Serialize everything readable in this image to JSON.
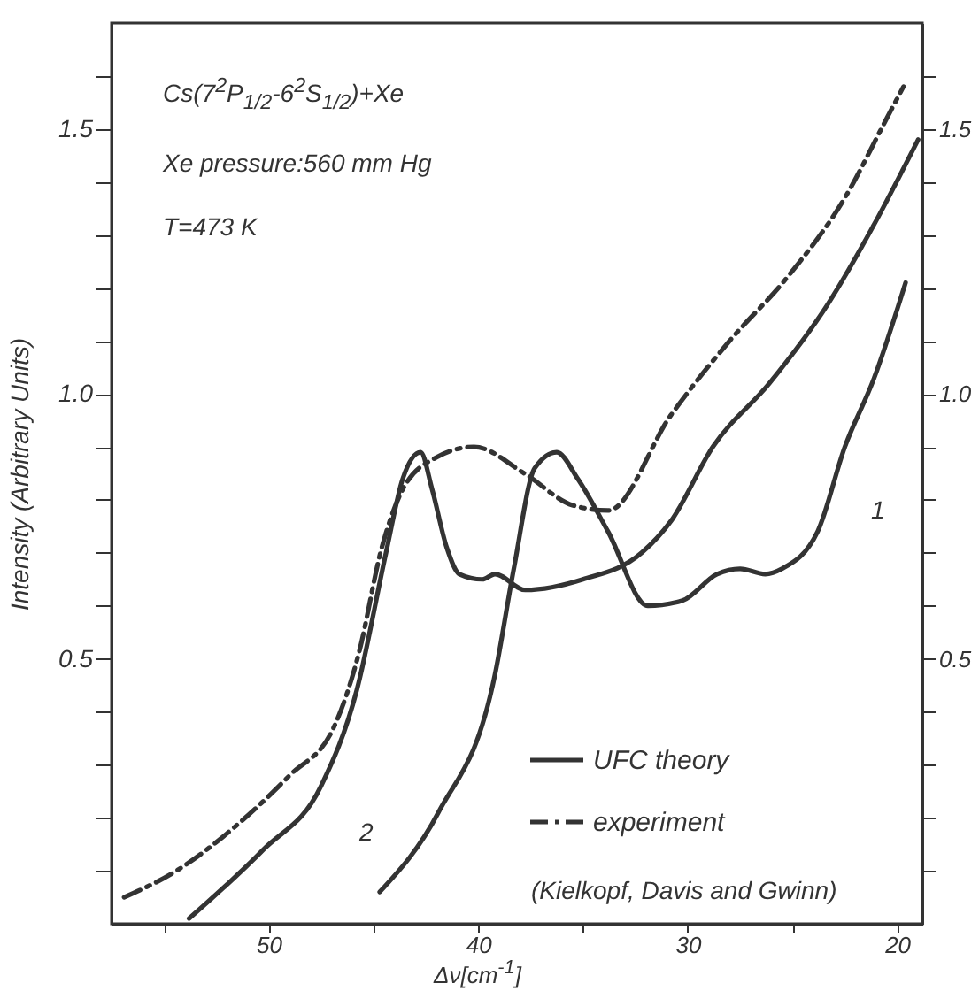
{
  "chart_data": {
    "type": "line",
    "xlabel": "Δν[cm$^{-1}$]",
    "ylabel": "Intensity (Arbitrary Units)",
    "xlim": [
      57.5,
      18.8
    ],
    "ylim": [
      0,
      1.7
    ],
    "xticks": [
      {
        "value": 55,
        "label": null
      },
      50,
      {
        "value": 45,
        "label": null
      },
      40,
      {
        "value": 35,
        "label": null
      },
      30,
      {
        "value": 25,
        "label": null
      },
      20
    ],
    "yticks": [
      {
        "value": 0.1,
        "label": null
      },
      {
        "value": 0.2,
        "label": null
      },
      {
        "value": 0.3,
        "label": null
      },
      {
        "value": 0.4,
        "label": null
      },
      0.5,
      {
        "value": 0.6,
        "label": null
      },
      {
        "value": 0.7,
        "label": null
      },
      {
        "value": 0.8,
        "label": null
      },
      {
        "value": 0.9,
        "label": null
      },
      {
        "value": 1.0,
        "label": "1.0"
      },
      {
        "value": 1.1,
        "label": null
      },
      {
        "value": 1.2,
        "label": null
      },
      {
        "value": 1.3,
        "label": null
      },
      {
        "value": 1.4,
        "label": null
      },
      1.5,
      {
        "value": 1.6,
        "label": null
      }
    ],
    "y2lim": [
      0,
      1.7
    ],
    "y2ticks": [
      {
        "value": 0.1,
        "label": null
      },
      {
        "value": 0.2,
        "label": null
      },
      {
        "value": 0.3,
        "label": null
      },
      {
        "value": 0.4,
        "label": null
      },
      0.5,
      {
        "value": 0.6,
        "label": null
      },
      {
        "value": 0.7,
        "label": null
      },
      {
        "value": 0.8,
        "label": null
      },
      {
        "value": 0.9,
        "label": null
      },
      {
        "value": 1.0,
        "label": "1.0"
      },
      {
        "value": 1.1,
        "label": null
      },
      {
        "value": 1.2,
        "label": null
      },
      {
        "value": 1.3,
        "label": null
      },
      {
        "value": 1.4,
        "label": null
      },
      1.5,
      {
        "value": 1.6,
        "label": null
      }
    ],
    "grid": false,
    "legend": "bottom right",
    "marker": "none",
    "annotations": [
      "Cs(7$^{2}$P$_{1/2}$-6$^{2}$S$_{1/2}$)+Xe",
      "Xe pressure:560 mm Hg",
      "T=473 K",
      "(Kielkopf, Davis and Gwinn)",
      "1",
      "2"
    ],
    "series": [
      {
        "name": "UFC theory",
        "color": "#333333",
        "line_style": "solid",
        "x": [
          44.7,
          41.9,
          39.2,
          38.3,
          37.3,
          36.25,
          35.25,
          33.8,
          31.9,
          30.25,
          28.6,
          27.5,
          26.3,
          25.5,
          23.8,
          22.5,
          21.1,
          19.6
        ],
        "values": [
          0.06,
          0.21,
          0.47,
          0.67,
          0.86,
          0.89,
          0.84,
          0.74,
          0.6,
          0.61,
          0.66,
          0.67,
          0.66,
          0.67,
          0.74,
          0.9,
          1.03,
          1.21
        ]
      },
      {
        "color": "#333333",
        "line_style": "solid",
        "x": [
          53.8,
          50.25,
          47.5,
          45.8,
          44.4,
          43.6,
          42.75,
          42.2,
          41.5,
          40.9,
          39.8,
          39.2,
          37.75,
          35,
          32.2,
          30.8,
          28.8,
          26.1,
          23.3,
          21.1,
          19.0
        ],
        "values": [
          0.01,
          0.14,
          0.26,
          0.44,
          0.7,
          0.84,
          0.89,
          0.82,
          0.71,
          0.66,
          0.65,
          0.66,
          0.63,
          0.65,
          0.7,
          0.76,
          0.9,
          1.02,
          1.17,
          1.32,
          1.48
        ]
      },
      {
        "name": "experiment",
        "color": "#333333",
        "line_style": "dashed",
        "x": [
          56.9,
          54.4,
          51.7,
          49.0,
          46.9,
          45.7,
          44.6,
          43.6,
          42.0,
          40.2,
          37.8,
          35.5,
          33.8,
          30.8,
          28.0,
          25.25,
          22.5,
          20.5,
          19.7
        ],
        "values": [
          0.05,
          0.1,
          0.18,
          0.28,
          0.37,
          0.51,
          0.71,
          0.82,
          0.88,
          0.9,
          0.85,
          0.79,
          0.78,
          0.96,
          1.1,
          1.22,
          1.37,
          1.52,
          1.58
        ]
      }
    ]
  }
}
